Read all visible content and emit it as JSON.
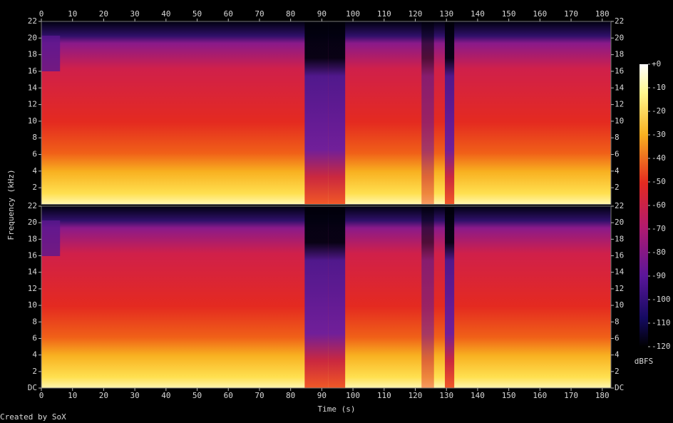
{
  "chart_data": {
    "type": "spectrogram",
    "xlabel": "Time (s)",
    "ylabel": "Frequency (kHz)",
    "credit": "Created by SoX",
    "xlim": [
      0,
      182.8
    ],
    "xticks": [
      0,
      10,
      20,
      30,
      40,
      50,
      60,
      70,
      80,
      90,
      100,
      110,
      120,
      130,
      140,
      150,
      160,
      170,
      180
    ],
    "channels": [
      {
        "ylim": [
          0,
          22
        ],
        "yticks": [
          2,
          4,
          6,
          8,
          10,
          12,
          14,
          16,
          18,
          20,
          22
        ]
      },
      {
        "ylim": [
          0,
          22
        ],
        "yticks": [
          {
            "value": 0,
            "label": "DC"
          },
          2,
          4,
          6,
          8,
          10,
          12,
          14,
          16,
          18,
          20,
          22
        ]
      }
    ],
    "colorbar": {
      "label": "dBFS",
      "lim": [
        -120,
        0
      ],
      "ticks": [
        {
          "value": 0,
          "label": "+0"
        },
        -10,
        -20,
        -30,
        -40,
        -50,
        -60,
        -70,
        -80,
        -90,
        -100,
        -110,
        -120
      ]
    }
  }
}
